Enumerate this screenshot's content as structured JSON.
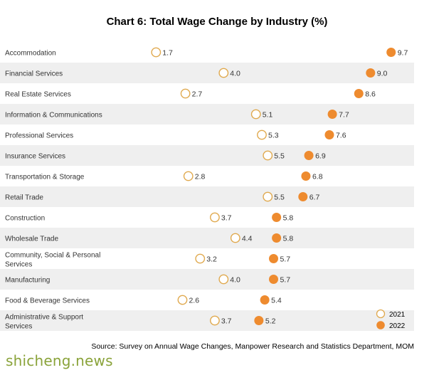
{
  "chart_data": {
    "type": "dot",
    "title": "Chart 6: Total Wage Change by Industry (%)",
    "categories": [
      "Accommodation",
      "Financial Services",
      "Real Estate Services",
      "Information & Communications",
      "Professional Services",
      "Insurance Services",
      "Transportation & Storage",
      "Retail Trade",
      "Construction",
      "Wholesale Trade",
      "Community, Social & Personal Services",
      "Manufacturing",
      "Food & Beverage Services",
      "Administrative & Support Services"
    ],
    "series": [
      {
        "name": "2021",
        "values": [
          1.7,
          4.0,
          2.7,
          5.1,
          5.3,
          5.5,
          2.8,
          5.5,
          3.7,
          4.4,
          3.2,
          4.0,
          2.6,
          3.7
        ],
        "style": "hollow"
      },
      {
        "name": "2022",
        "values": [
          9.7,
          9.0,
          8.6,
          7.7,
          7.6,
          6.9,
          6.8,
          6.7,
          5.8,
          5.8,
          5.7,
          5.7,
          5.4,
          5.2
        ],
        "style": "filled"
      }
    ],
    "legend_position": "bottom-right",
    "colors": {
      "2021_outline": "#e0a94e",
      "2022_fill": "#ee8b2f",
      "band": "#efefef"
    }
  },
  "source": "Source: Survey on Annual Wage Changes, Manpower Research and Statistics Department, MOM",
  "watermark": "shicheng.news"
}
